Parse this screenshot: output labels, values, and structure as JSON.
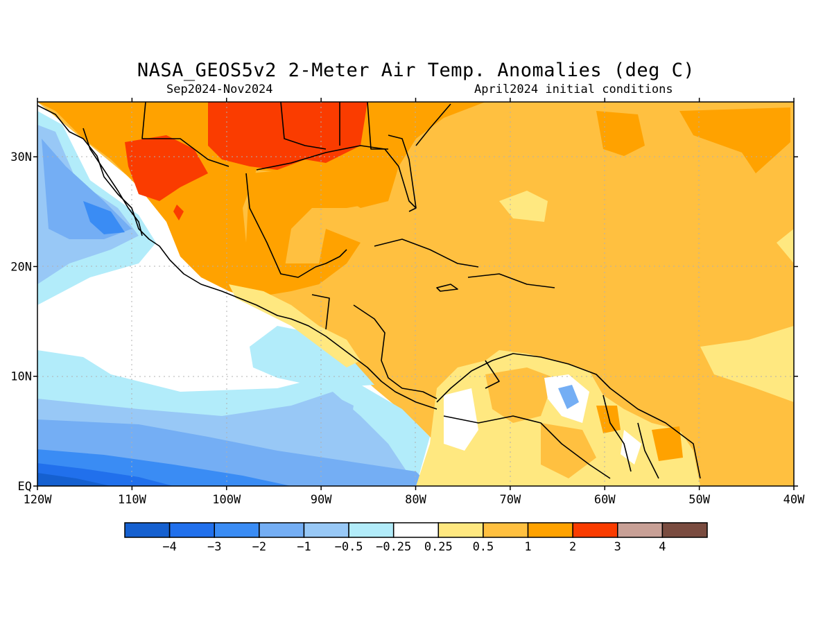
{
  "title": "NASA_GEOS5v2 2-Meter Air Temp. Anomalies (deg C)",
  "subtitle_left": "Sep2024-Nov2024",
  "subtitle_right": "April2024 initial conditions",
  "map": {
    "lon_range": [
      -120,
      -40
    ],
    "lat_range": [
      0,
      35
    ],
    "lon_ticks": [
      {
        "value": -120,
        "label": "120W"
      },
      {
        "value": -110,
        "label": "110W"
      },
      {
        "value": -100,
        "label": "100W"
      },
      {
        "value": -90,
        "label": "90W"
      },
      {
        "value": -80,
        "label": "80W"
      },
      {
        "value": -70,
        "label": "70W"
      },
      {
        "value": -60,
        "label": "60W"
      },
      {
        "value": -50,
        "label": "50W"
      },
      {
        "value": -40,
        "label": "40W"
      }
    ],
    "lat_ticks": [
      {
        "value": 0,
        "label": "EQ"
      },
      {
        "value": 10,
        "label": "10N"
      },
      {
        "value": 20,
        "label": "20N"
      },
      {
        "value": 30,
        "label": "30N"
      }
    ],
    "grid_lines": "dotted",
    "colors": {
      "below_-4": "#1560d0",
      "-4_to_-3": "#2170ec",
      "-3_to_-2": "#3a8cf4",
      "-2_to_-1": "#74aef4",
      "-1_to_-0.5": "#98c8f6",
      "-0.5_to_-0.25": "#b2ecfa",
      "-0.25_to_0.25": "#ffffff",
      "0.25_to_0.5": "#ffe880",
      "0.5_to_1": "#ffc040",
      "1_to_2": "#ffa200",
      "2_to_3": "#fa3c00",
      "3_to_4": "#c8a096",
      "above_4": "#7a4c40"
    }
  },
  "legend": {
    "colors": [
      "#1560d0",
      "#2170ec",
      "#3a8cf4",
      "#74aef4",
      "#98c8f6",
      "#b2ecfa",
      "#ffffff",
      "#ffe880",
      "#ffc040",
      "#ffa200",
      "#fa3c00",
      "#c8a096",
      "#7a4c40"
    ],
    "labels": [
      "−4",
      "−3",
      "−2",
      "−1",
      "−0.5",
      "−0.25",
      "0.25",
      "0.5",
      "1",
      "2",
      "3",
      "4"
    ]
  }
}
